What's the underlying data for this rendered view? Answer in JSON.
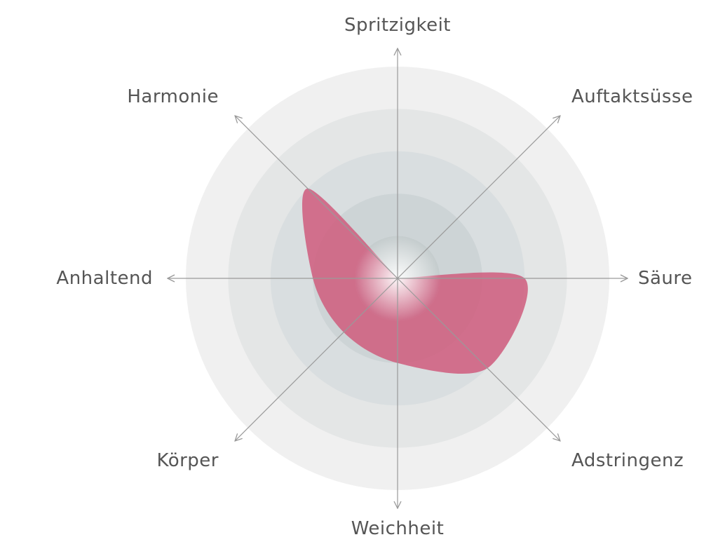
{
  "chart_data": {
    "type": "radar",
    "axes": [
      "Spritzigkeit",
      "Auftaktsüsse",
      "Säure",
      "Adstringenz",
      "Weichheit",
      "Körper",
      "Anhaltend",
      "Harmonie"
    ],
    "values": [
      0,
      0,
      3,
      3,
      2,
      1.8,
      2,
      3
    ],
    "range": [
      0,
      5
    ],
    "rings": 5,
    "grid": true,
    "fill_color": "#cf5c7d",
    "ring_colors": [
      "#f0f0f0",
      "#e4e6e6",
      "#d9dee0",
      "#cdd4d6",
      "#c3cbcc"
    ]
  }
}
